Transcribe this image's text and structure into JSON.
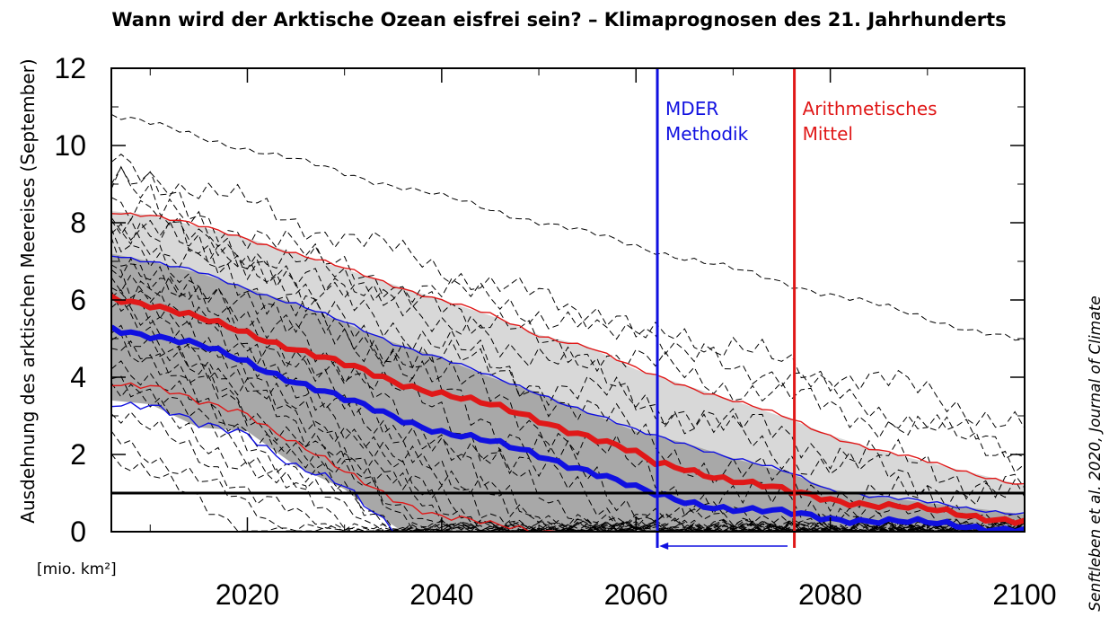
{
  "chart_data": {
    "type": "line",
    "title": "Wann wird der Arktische Ozean eisfrei sein? – Klimaprognosen des 21. Jahrhunderts",
    "ylabel": "Ausdehnung des arktischen Meereises (September)",
    "unit_label": "[mio. km²]",
    "source": "Senftleben et al. 2020, Journal of Climate",
    "xlim": [
      2006,
      2100
    ],
    "ylim": [
      0,
      12
    ],
    "x_ticks": [
      2020,
      2040,
      2060,
      2080,
      2100
    ],
    "y_ticks": [
      0,
      2,
      4,
      6,
      8,
      10,
      12
    ],
    "threshold": 1,
    "colors": {
      "mder": "#1010e0",
      "mean": "#e01818",
      "band_light": "#d8d8d8",
      "band_dark": "#a8a8a8"
    },
    "vlines": [
      {
        "x": 2062.2,
        "label_lines": [
          "MDER",
          "Methodik"
        ],
        "color": "#1010e0"
      },
      {
        "x": 2076.3,
        "label_lines": [
          "Arithmetisches",
          "Mittel"
        ],
        "color": "#e01818"
      }
    ],
    "arrow": {
      "from": 2075.6,
      "to": 2062.4,
      "y": -0.35
    },
    "series": [
      {
        "role": "mean-thick",
        "x": [
          2006,
          2010,
          2015,
          2020,
          2025,
          2030,
          2035,
          2040,
          2045,
          2050,
          2055,
          2060,
          2062,
          2065,
          2070,
          2076,
          2080,
          2085,
          2090,
          2095,
          2100
        ],
        "values": [
          6.1,
          5.9,
          5.5,
          5.15,
          4.75,
          4.3,
          3.9,
          3.6,
          3.25,
          2.9,
          2.5,
          2.0,
          1.75,
          1.65,
          1.35,
          1.0,
          0.85,
          0.7,
          0.55,
          0.4,
          0.3
        ]
      },
      {
        "role": "mean-upper",
        "x": [
          2006,
          2010,
          2015,
          2020,
          2025,
          2030,
          2035,
          2040,
          2045,
          2050,
          2055,
          2060,
          2065,
          2070,
          2076,
          2080,
          2085,
          2090,
          2095,
          2100
        ],
        "values": [
          8.3,
          8.2,
          7.9,
          7.6,
          7.2,
          6.8,
          6.4,
          6.0,
          5.6,
          5.1,
          4.8,
          4.2,
          3.8,
          3.4,
          2.9,
          2.5,
          2.1,
          1.8,
          1.5,
          1.2
        ]
      },
      {
        "role": "mean-lower",
        "x": [
          2006,
          2010,
          2015,
          2020,
          2025,
          2030,
          2035,
          2040,
          2045,
          2050,
          2052
        ],
        "values": [
          3.9,
          3.8,
          3.3,
          3.1,
          2.3,
          1.5,
          0.9,
          0.4,
          0.15,
          0.05,
          0.0
        ]
      },
      {
        "role": "mder-thick",
        "x": [
          2006,
          2010,
          2015,
          2020,
          2025,
          2030,
          2035,
          2040,
          2045,
          2050,
          2055,
          2060,
          2062,
          2065,
          2070,
          2076,
          2080,
          2085,
          2090,
          2095,
          2100
        ],
        "values": [
          5.3,
          5.1,
          4.8,
          4.4,
          3.9,
          3.4,
          3.0,
          2.6,
          2.3,
          2.0,
          1.6,
          1.1,
          0.95,
          0.8,
          0.6,
          0.45,
          0.35,
          0.3,
          0.2,
          0.12,
          0.08
        ]
      },
      {
        "role": "mder-upper",
        "x": [
          2006,
          2010,
          2015,
          2020,
          2025,
          2030,
          2035,
          2040,
          2045,
          2050,
          2055,
          2060,
          2065,
          2070,
          2076,
          2080,
          2085,
          2090,
          2095,
          2100
        ],
        "values": [
          7.2,
          7.0,
          6.7,
          6.3,
          5.9,
          5.4,
          4.9,
          4.5,
          4.0,
          3.6,
          3.1,
          2.6,
          2.3,
          1.9,
          1.5,
          1.1,
          0.9,
          0.75,
          0.6,
          0.45
        ]
      },
      {
        "role": "mder-lower",
        "x": [
          2006,
          2010,
          2015,
          2020,
          2025,
          2030,
          2033,
          2036
        ],
        "values": [
          3.4,
          3.3,
          2.7,
          2.6,
          1.7,
          1.1,
          0.5,
          0.0
        ]
      }
    ],
    "ensemble": [
      {
        "start": 10.8,
        "end": 4.9,
        "endYear": 2100,
        "amp": 0.12,
        "phase": 0.3
      },
      {
        "start": 9.6,
        "end": 3.2,
        "endYear": 2085,
        "amp": 0.45,
        "phase": 1.1
      },
      {
        "start": 9.2,
        "end": 2.0,
        "endYear": 2075,
        "amp": 0.55,
        "phase": 2.4
      },
      {
        "start": 8.8,
        "end": 1.6,
        "endYear": 2068,
        "amp": 0.6,
        "phase": 0.9
      },
      {
        "start": 9.0,
        "end": 0.6,
        "endYear": 2060,
        "amp": 0.7,
        "phase": 3.3
      },
      {
        "start": 8.2,
        "end": 1.0,
        "endYear": 2065,
        "amp": 0.65,
        "phase": 4.2
      },
      {
        "start": 7.8,
        "end": 0.4,
        "endYear": 2058,
        "amp": 0.6,
        "phase": 5.0
      },
      {
        "start": 7.4,
        "end": 0.3,
        "endYear": 2055,
        "amp": 0.55,
        "phase": 1.7
      },
      {
        "start": 7.0,
        "end": 0.2,
        "endYear": 2052,
        "amp": 0.6,
        "phase": 2.9
      },
      {
        "start": 6.8,
        "end": 0.2,
        "endYear": 2050,
        "amp": 0.55,
        "phase": 0.5
      },
      {
        "start": 6.5,
        "end": 0.1,
        "endYear": 2048,
        "amp": 0.55,
        "phase": 3.8
      },
      {
        "start": 6.2,
        "end": 0.1,
        "endYear": 2045,
        "amp": 0.5,
        "phase": 4.6
      },
      {
        "start": 6.0,
        "end": 0.1,
        "endYear": 2044,
        "amp": 0.55,
        "phase": 2.2
      },
      {
        "start": 5.8,
        "end": 0.1,
        "endYear": 2042,
        "amp": 0.5,
        "phase": 5.4
      },
      {
        "start": 5.5,
        "end": 0.1,
        "endYear": 2040,
        "amp": 0.5,
        "phase": 1.3
      },
      {
        "start": 5.2,
        "end": 0.1,
        "endYear": 2038,
        "amp": 0.5,
        "phase": 3.1
      },
      {
        "start": 5.0,
        "end": 0.1,
        "endYear": 2036,
        "amp": 0.45,
        "phase": 0.2
      },
      {
        "start": 4.6,
        "end": 0.1,
        "endYear": 2035,
        "amp": 0.45,
        "phase": 4.0
      },
      {
        "start": 4.2,
        "end": 0.1,
        "endYear": 2033,
        "amp": 0.45,
        "phase": 2.6
      },
      {
        "start": 3.8,
        "end": 0.1,
        "endYear": 2031,
        "amp": 0.45,
        "phase": 5.8
      },
      {
        "start": 3.2,
        "end": 0.05,
        "endYear": 2028,
        "amp": 0.4,
        "phase": 1.9
      },
      {
        "start": 2.6,
        "end": 0.05,
        "endYear": 2024,
        "amp": 0.35,
        "phase": 3.6
      },
      {
        "start": 2.0,
        "end": 0.05,
        "endYear": 2020,
        "amp": 0.35,
        "phase": 0.7
      },
      {
        "start": 7.6,
        "end": 2.6,
        "endYear": 2090,
        "amp": 0.5,
        "phase": 2.0
      },
      {
        "start": 8.0,
        "end": 3.6,
        "endYear": 2090,
        "amp": 0.5,
        "phase": 4.8
      },
      {
        "start": 6.4,
        "end": 1.5,
        "endYear": 2092,
        "amp": 0.6,
        "phase": 3.4
      }
    ]
  }
}
